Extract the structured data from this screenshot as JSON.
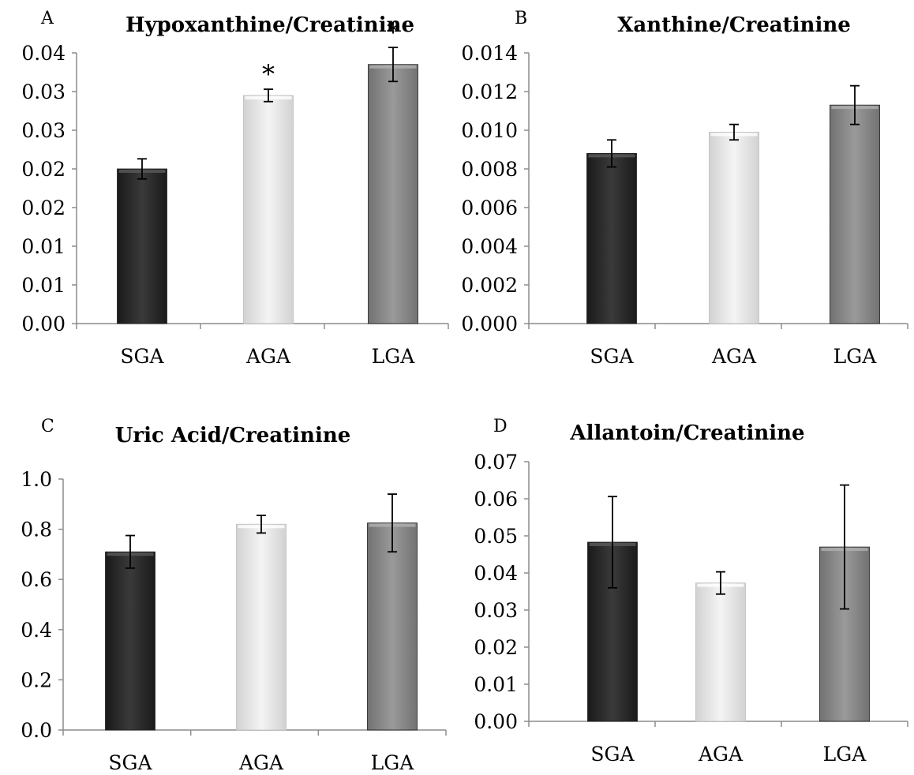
{
  "colors": {
    "SGA": "#2b2b2b",
    "AGA": "#e4e4e4",
    "LGA": "#8a8a8a"
  },
  "chart_data": [
    {
      "type": "bar",
      "panel": "A",
      "title": "Hypoxanthine/Creatinine",
      "categories": [
        "SGA",
        "AGA",
        "LGA"
      ],
      "values": [
        0.02,
        0.0295,
        0.0335
      ],
      "errors": [
        0.0013,
        0.0008,
        0.0022
      ],
      "significance": [
        "",
        "*",
        "*"
      ],
      "ylim": [
        0,
        0.035
      ],
      "yticks": [
        0,
        0.005,
        0.01,
        0.015,
        0.02,
        0.025,
        0.03,
        0.035
      ],
      "ytick_labels": [
        "0.00",
        "0.01",
        "0.01",
        "0.02",
        "0.02",
        "0.03",
        "0.03",
        "0.04"
      ]
    },
    {
      "type": "bar",
      "panel": "B",
      "title": "Xanthine/Creatinine",
      "categories": [
        "SGA",
        "AGA",
        "LGA"
      ],
      "values": [
        0.0088,
        0.0099,
        0.0113
      ],
      "errors": [
        0.0007,
        0.0004,
        0.001
      ],
      "significance": [
        "",
        "",
        ""
      ],
      "ylim": [
        0,
        0.014
      ],
      "yticks": [
        0,
        0.002,
        0.004,
        0.006,
        0.008,
        0.01,
        0.012,
        0.014
      ],
      "ytick_labels": [
        "0.000",
        "0.002",
        "0.004",
        "0.006",
        "0.008",
        "0.010",
        "0.012",
        "0.014"
      ]
    },
    {
      "type": "bar",
      "panel": "C",
      "title": "Uric Acid/Creatinine",
      "categories": [
        "SGA",
        "AGA",
        "LGA"
      ],
      "values": [
        0.71,
        0.82,
        0.825
      ],
      "errors": [
        0.065,
        0.035,
        0.115
      ],
      "significance": [
        "",
        "",
        ""
      ],
      "ylim": [
        0,
        1.0
      ],
      "yticks": [
        0,
        0.2,
        0.4,
        0.6,
        0.8,
        1.0
      ],
      "ytick_labels": [
        "0.0",
        "0.2",
        "0.4",
        "0.6",
        "0.8",
        "1.0"
      ]
    },
    {
      "type": "bar",
      "panel": "D",
      "title": "Allantoin/Creatinine",
      "categories": [
        "SGA",
        "AGA",
        "LGA"
      ],
      "values": [
        0.0483,
        0.0373,
        0.047
      ],
      "errors": [
        0.0123,
        0.003,
        0.0167
      ],
      "significance": [
        "",
        "",
        ""
      ],
      "ylim": [
        0,
        0.07
      ],
      "yticks": [
        0,
        0.01,
        0.02,
        0.03,
        0.04,
        0.05,
        0.06,
        0.07
      ],
      "ytick_labels": [
        "0.00",
        "0.01",
        "0.02",
        "0.03",
        "0.04",
        "0.05",
        "0.06",
        "0.07"
      ]
    }
  ]
}
